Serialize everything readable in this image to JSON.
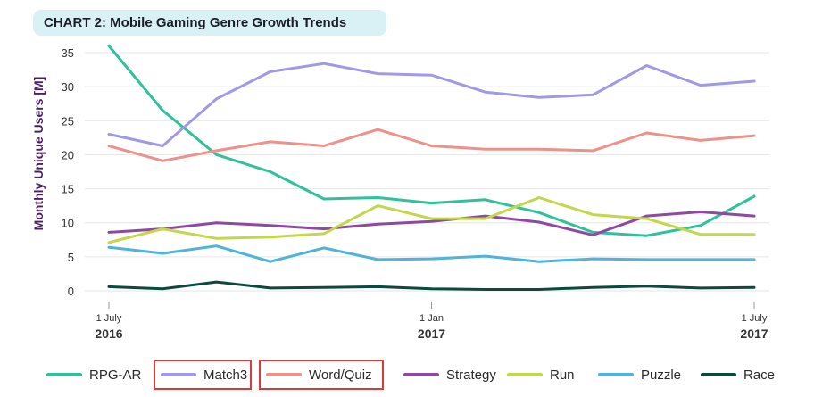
{
  "title": "CHART 2: Mobile Gaming Genre Growth Trends",
  "chart_data": {
    "type": "line",
    "ylabel": "Monthly Unique Users [M]",
    "xlabel": "",
    "ylim": [
      0,
      35
    ],
    "yticks": [
      0,
      5,
      10,
      15,
      20,
      25,
      30,
      35
    ],
    "x": [
      "2016-07",
      "2016-08",
      "2016-09",
      "2016-10",
      "2016-11",
      "2016-12",
      "2017-01",
      "2017-02",
      "2017-03",
      "2017-04",
      "2017-05",
      "2017-06",
      "2017-07"
    ],
    "xticks": [
      {
        "line1": "1 July",
        "line2": "2016",
        "index": 0
      },
      {
        "line1": "1 Jan",
        "line2": "2017",
        "index": 6
      },
      {
        "line1": "1 July",
        "line2": "2017",
        "index": 12
      }
    ],
    "grid": "horizontal",
    "legend_position": "bottom",
    "series": [
      {
        "name": "RPG-AR",
        "color": "#2fc29a",
        "values": [
          36,
          26.5,
          20,
          17.5,
          13.5,
          13.7,
          12.9,
          13.4,
          11.5,
          8.6,
          8.1,
          9.6,
          13.9
        ]
      },
      {
        "name": "Match3",
        "color": "#a09ae6",
        "values": [
          23,
          21.3,
          28.2,
          32.2,
          33.4,
          31.9,
          31.7,
          29.2,
          28.4,
          28.8,
          33.1,
          30.2,
          30.8
        ]
      },
      {
        "name": "Word/Quiz",
        "color": "#ee918b",
        "values": [
          21.3,
          19.1,
          20.6,
          21.9,
          21.3,
          23.7,
          21.3,
          20.8,
          20.8,
          20.6,
          23.2,
          22.1,
          22.8
        ]
      },
      {
        "name": "Strategy",
        "color": "#8e4aa0",
        "values": [
          8.6,
          9.1,
          10.0,
          9.6,
          9.1,
          9.8,
          10.2,
          11.0,
          10.1,
          8.2,
          11.0,
          11.6,
          11.0
        ]
      },
      {
        "name": "Run",
        "color": "#c2d84a",
        "values": [
          7.1,
          9.1,
          7.7,
          7.9,
          8.4,
          12.5,
          10.6,
          10.6,
          13.7,
          11.2,
          10.6,
          8.3,
          8.3
        ]
      },
      {
        "name": "Puzzle",
        "color": "#4db4dc",
        "values": [
          6.4,
          5.5,
          6.6,
          4.3,
          6.3,
          4.6,
          4.7,
          5.1,
          4.3,
          4.7,
          4.6,
          4.6,
          4.6
        ]
      },
      {
        "name": "Race",
        "color": "#0d4a3e",
        "values": [
          0.6,
          0.3,
          1.3,
          0.4,
          0.5,
          0.6,
          0.3,
          0.2,
          0.2,
          0.5,
          0.7,
          0.4,
          0.5
        ]
      }
    ]
  },
  "legend": {
    "highlighted": [
      "Match3",
      "Word/Quiz"
    ],
    "highlight_color": "#d93a3a"
  }
}
